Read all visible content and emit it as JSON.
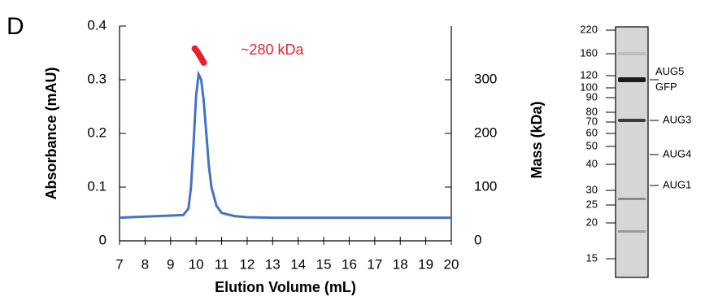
{
  "panel_label": "D",
  "chart_data": {
    "type": "line",
    "xlabel": "Elution Volume (mL)",
    "ylabel": "Absorbance (mAU)",
    "y2label": "Mass (kDa)",
    "annotation": "~280 kDa",
    "xlim": [
      7,
      20
    ],
    "xticks": [
      7,
      8,
      9,
      10,
      11,
      12,
      13,
      14,
      15,
      16,
      17,
      18,
      19,
      20
    ],
    "ylim": [
      0,
      0.4
    ],
    "yticks": [
      0,
      0.1,
      0.2,
      0.3,
      0.4
    ],
    "y2lim": [
      0,
      400
    ],
    "y2ticks": [
      0,
      100,
      200,
      300
    ],
    "series": [
      {
        "type": "line",
        "color": "#4472c4",
        "x": [
          7,
          8,
          9,
          9.5,
          9.7,
          9.8,
          9.9,
          10.0,
          10.1,
          10.2,
          10.3,
          10.4,
          10.5,
          10.6,
          10.8,
          11,
          11.5,
          12,
          13,
          15,
          20
        ],
        "values": [
          0.043,
          0.045,
          0.047,
          0.048,
          0.06,
          0.1,
          0.18,
          0.27,
          0.31,
          0.3,
          0.26,
          0.2,
          0.14,
          0.1,
          0.065,
          0.052,
          0.046,
          0.044,
          0.043,
          0.043,
          0.043
        ]
      },
      {
        "type": "scatter",
        "color": "#e8212f",
        "axis": "y2",
        "x": [
          9.95,
          10.0,
          10.05,
          10.1,
          10.15,
          10.2,
          10.25,
          10.3
        ],
        "values": [
          358,
          355,
          352,
          348,
          344,
          340,
          336,
          332
        ]
      }
    ]
  },
  "gel": {
    "markers": [
      "220",
      "160",
      "120",
      "100",
      "90",
      "80",
      "70",
      "60",
      "50",
      "40",
      "30",
      "25",
      "20",
      "15"
    ],
    "bands": [
      [
        "AUG5",
        "GFP"
      ],
      [
        "AUG3"
      ],
      [
        "AUG4"
      ],
      [
        "AUG1"
      ]
    ]
  }
}
